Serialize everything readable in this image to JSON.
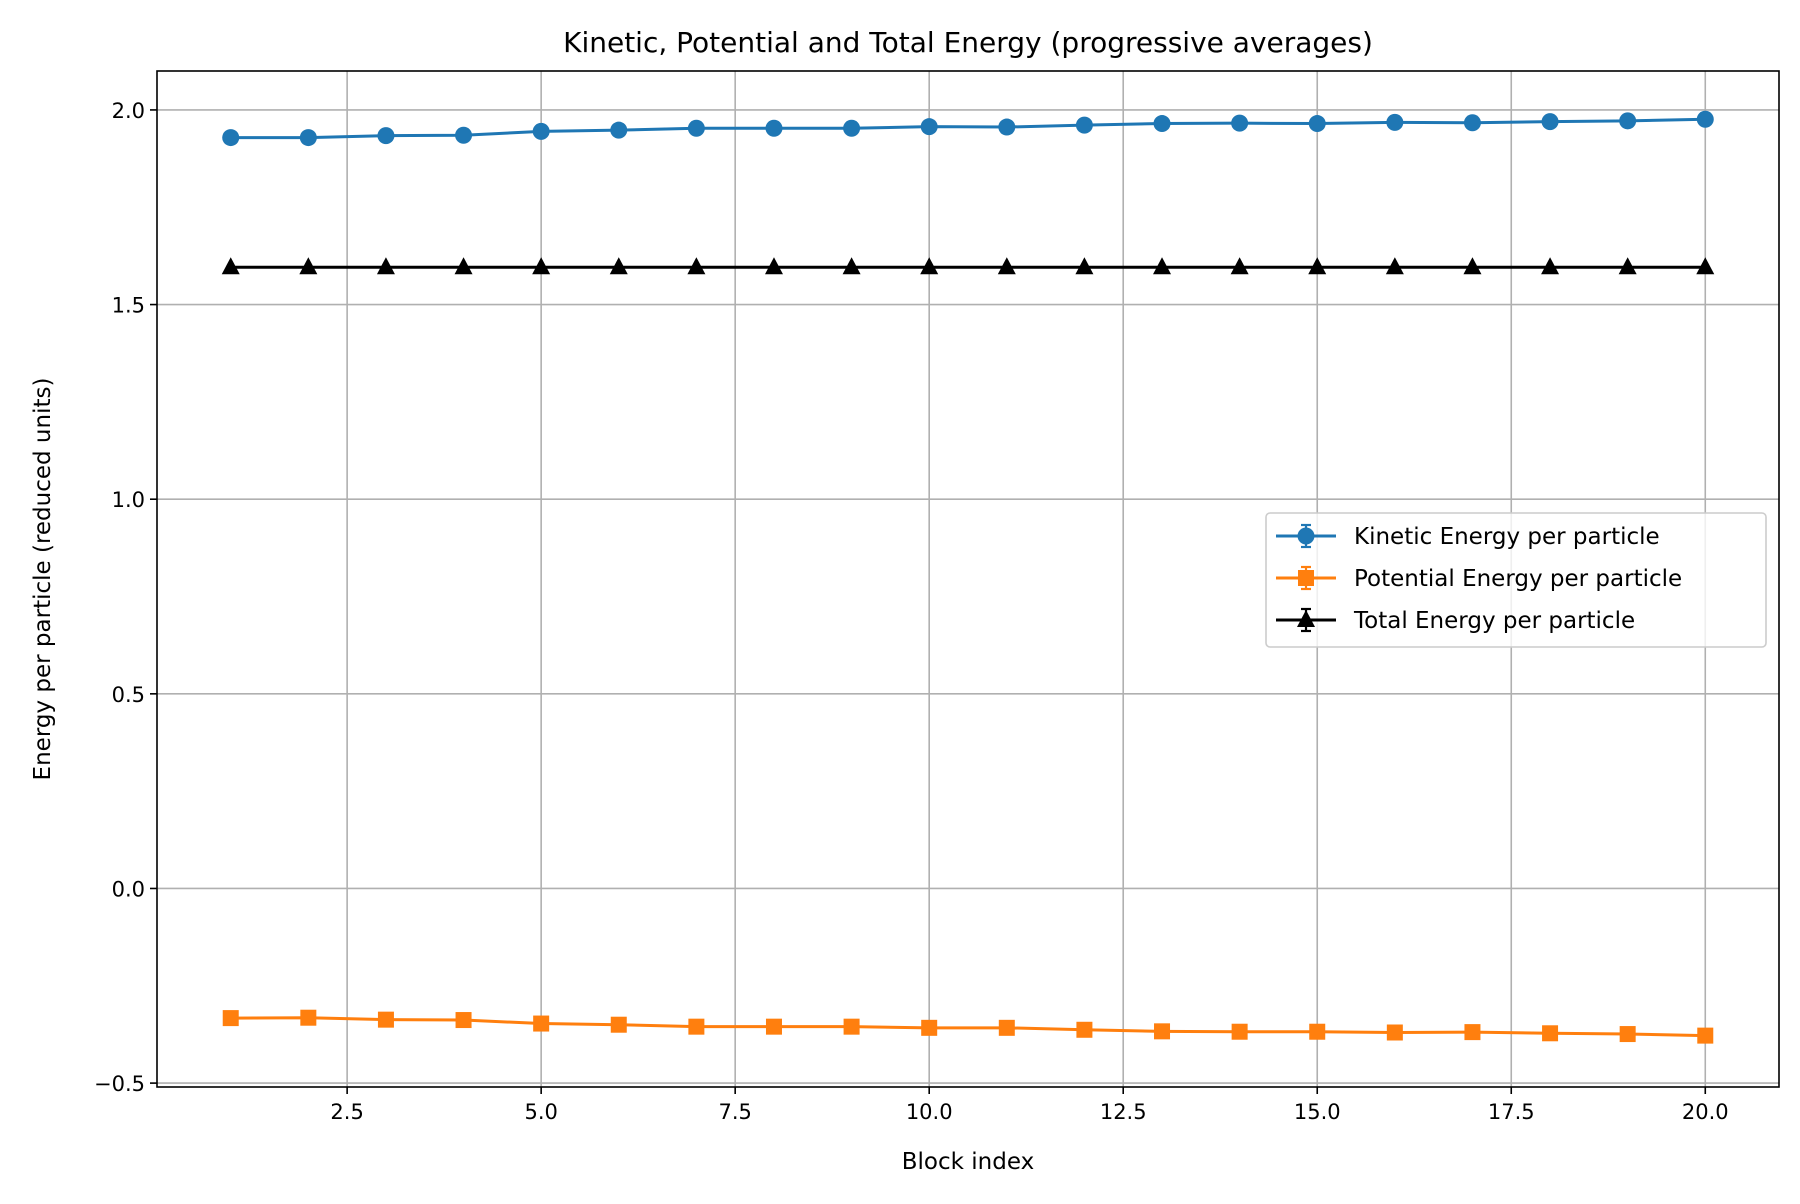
{
  "chart_data": {
    "type": "line",
    "title": "Kinetic, Potential and Total Energy (progressive averages)",
    "xlabel": "Block index",
    "ylabel": "Energy per particle (reduced units)",
    "xlim": [
      0.05,
      20.95
    ],
    "ylim": [
      -0.51,
      2.1
    ],
    "xticks": [
      2.5,
      5.0,
      7.5,
      10.0,
      12.5,
      15.0,
      17.5,
      20.0
    ],
    "xtick_labels": [
      "2.5",
      "5.0",
      "7.5",
      "10.0",
      "12.5",
      "15.0",
      "17.5",
      "20.0"
    ],
    "yticks": [
      -0.5,
      0.0,
      0.5,
      1.0,
      1.5,
      2.0
    ],
    "ytick_labels": [
      "−0.5",
      "0.0",
      "0.5",
      "1.0",
      "1.5",
      "2.0"
    ],
    "grid": true,
    "legend_position": "center-right",
    "x": [
      1,
      2,
      3,
      4,
      5,
      6,
      7,
      8,
      9,
      10,
      11,
      12,
      13,
      14,
      15,
      16,
      17,
      18,
      19,
      20
    ],
    "series": [
      {
        "name": "Kinetic Energy per particle",
        "color": "#1f77b4",
        "marker": "circle",
        "values": [
          1.929,
          1.929,
          1.934,
          1.935,
          1.945,
          1.948,
          1.953,
          1.953,
          1.953,
          1.957,
          1.956,
          1.961,
          1.965,
          1.966,
          1.965,
          1.968,
          1.967,
          1.97,
          1.972,
          1.976
        ]
      },
      {
        "name": "Potential Energy per particle",
        "color": "#ff7f0e",
        "marker": "square",
        "values": [
          -0.333,
          -0.332,
          -0.337,
          -0.338,
          -0.347,
          -0.35,
          -0.355,
          -0.355,
          -0.355,
          -0.358,
          -0.358,
          -0.363,
          -0.367,
          -0.368,
          -0.368,
          -0.37,
          -0.369,
          -0.372,
          -0.374,
          -0.378
        ]
      },
      {
        "name": "Total Energy per particle",
        "color": "#000000",
        "marker": "triangle",
        "values": [
          1.596,
          1.596,
          1.596,
          1.596,
          1.596,
          1.596,
          1.596,
          1.596,
          1.596,
          1.596,
          1.596,
          1.596,
          1.596,
          1.596,
          1.596,
          1.596,
          1.596,
          1.596,
          1.596,
          1.596
        ]
      }
    ]
  }
}
